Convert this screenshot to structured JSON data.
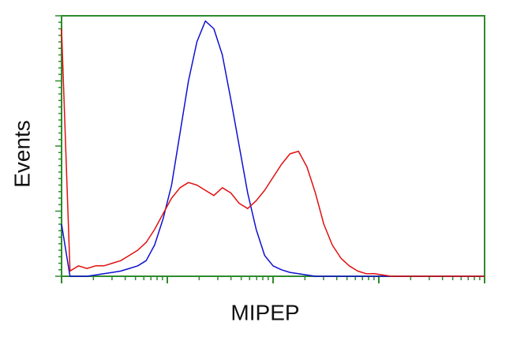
{
  "chart_data": {
    "type": "line",
    "x_label": "MIPEP",
    "y_label": "Events",
    "x": [
      0,
      2,
      4,
      6,
      8,
      10,
      12,
      14,
      16,
      18,
      20,
      22,
      24,
      26,
      28,
      30,
      32,
      34,
      36,
      38,
      40,
      42,
      44,
      46,
      48,
      50,
      52,
      54,
      56,
      58,
      60,
      62,
      64,
      66,
      68,
      70,
      72,
      74,
      76,
      78,
      80,
      82,
      84,
      86,
      88,
      90,
      92,
      94,
      96,
      98,
      100
    ],
    "series": [
      {
        "color": "#1010d0",
        "values": [
          20,
          0,
          0,
          0,
          0.5,
          1,
          1.5,
          2,
          3,
          4,
          6,
          12,
          22,
          35,
          55,
          75,
          90,
          98,
          95,
          85,
          68,
          50,
          32,
          18,
          8,
          4,
          2.5,
          1.5,
          1,
          0.5,
          0,
          0,
          0,
          0,
          0,
          0,
          0,
          0,
          0,
          0,
          0,
          0,
          0,
          0,
          0,
          0,
          0,
          0,
          0,
          0,
          0
        ]
      },
      {
        "color": "#e01010",
        "values": [
          95,
          2,
          4,
          3,
          4,
          4,
          5,
          6,
          8,
          10,
          13,
          18,
          24,
          30,
          34,
          36,
          35,
          33,
          31,
          34,
          32,
          28,
          26,
          29,
          33,
          38,
          43,
          47,
          48,
          42,
          32,
          20,
          12,
          7,
          4,
          2,
          1,
          1,
          0.5,
          0,
          0,
          0,
          0,
          0,
          0,
          0,
          0,
          0,
          0,
          0,
          0
        ]
      }
    ],
    "xlim": [
      0,
      100
    ],
    "ylim": [
      0,
      100
    ],
    "frame_color": "#2e8b2e"
  }
}
